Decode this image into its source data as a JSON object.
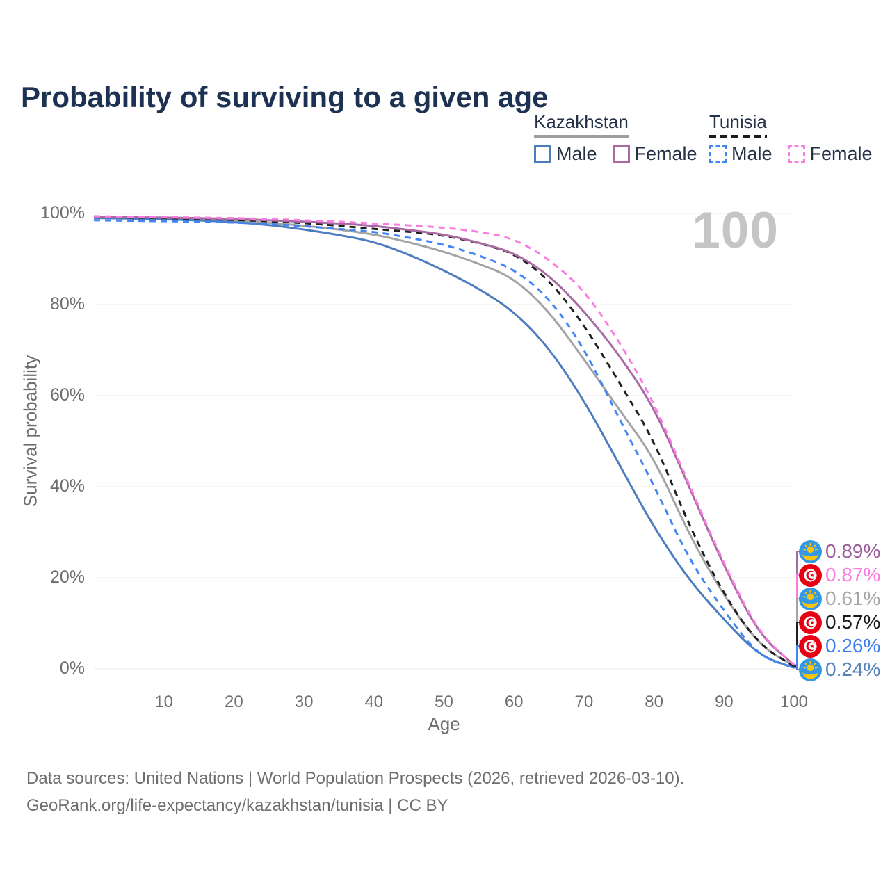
{
  "title": "Probability of surviving to a given age",
  "watermark": "100",
  "legend": {
    "groups": [
      {
        "country": "Kazakhstan",
        "line_style": "solid",
        "underline_color": "#9e9e9e",
        "items": [
          {
            "label": "Male",
            "color": "#4d7dbf"
          },
          {
            "label": "Female",
            "color": "#a96aa3"
          }
        ]
      },
      {
        "country": "Tunisia",
        "line_style": "dashed",
        "underline_color": "#1c1c1c",
        "items": [
          {
            "label": "Male",
            "color": "#4285f4"
          },
          {
            "label": "Female",
            "color": "#fb7ce1"
          }
        ]
      }
    ]
  },
  "chart_data": {
    "type": "line",
    "xlabel": "Age",
    "ylabel": "Survival probability",
    "xlim": [
      0,
      100
    ],
    "ylim": [
      0,
      100
    ],
    "grid": true,
    "legend_position": "top-right",
    "hover_age": 100,
    "x_ticks": [
      10,
      20,
      30,
      40,
      50,
      60,
      70,
      80,
      90,
      100
    ],
    "y_ticks": [
      {
        "value": 0,
        "label": "0%"
      },
      {
        "value": 20,
        "label": "20%"
      },
      {
        "value": 40,
        "label": "40%"
      },
      {
        "value": 60,
        "label": "60%"
      },
      {
        "value": 80,
        "label": "80%"
      },
      {
        "value": 100,
        "label": "100%"
      }
    ],
    "ages": [
      0,
      5,
      10,
      15,
      20,
      25,
      30,
      35,
      40,
      45,
      50,
      55,
      60,
      65,
      70,
      75,
      80,
      85,
      90,
      95,
      100
    ],
    "series": [
      {
        "name": "Kazakhstan",
        "country": "kz",
        "sex": "both",
        "color": "#a3a3a3",
        "dashed": false,
        "values": [
          99.1,
          99.0,
          98.9,
          98.7,
          98.4,
          98.0,
          97.3,
          96.5,
          95.4,
          93.7,
          91.6,
          89.0,
          85.8,
          78.5,
          68.0,
          57.0,
          46.4,
          29.5,
          16.0,
          5.2,
          0.61
        ],
        "end_label": "0.61%",
        "end_label_color": "#a6a6a6"
      },
      {
        "name": "Kazakhstan Male",
        "country": "kz",
        "sex": "male",
        "color": "#4d7dbf",
        "dashed": false,
        "values": [
          99.0,
          98.9,
          98.7,
          98.5,
          98.1,
          97.5,
          96.5,
          95.3,
          93.8,
          91.0,
          87.5,
          83.5,
          78.5,
          70.5,
          59.0,
          45.0,
          31.0,
          19.5,
          10.8,
          2.9,
          0.24
        ],
        "end_label": "0.24%",
        "end_label_color": "#5581bd"
      },
      {
        "name": "Tunisia Male",
        "country": "tn",
        "sex": "male",
        "color": "#4285f4",
        "dashed": true,
        "values": [
          98.5,
          98.4,
          98.3,
          98.2,
          98.0,
          97.7,
          97.2,
          96.6,
          96.0,
          94.7,
          93.2,
          90.8,
          87.8,
          81.5,
          70.5,
          55.0,
          40.3,
          24.0,
          12.7,
          2.7,
          0.26
        ],
        "end_label": "0.26%",
        "end_label_color": "#3d7df0"
      },
      {
        "name": "Tunisia",
        "country": "tn",
        "sex": "both",
        "color": "#1f1f1f",
        "dashed": true,
        "values": [
          99.2,
          99.1,
          99.0,
          98.8,
          98.6,
          98.3,
          97.9,
          97.3,
          96.6,
          96.0,
          95.2,
          93.5,
          91.3,
          85.5,
          75.6,
          63.0,
          50.2,
          31.5,
          16.2,
          5.3,
          0.57
        ],
        "end_label": "0.57%",
        "end_label_color": "#1a1a1a"
      },
      {
        "name": "Kazakhstan Female",
        "country": "kz",
        "sex": "female",
        "color": "#a96aa3",
        "dashed": false,
        "values": [
          99.3,
          99.2,
          99.1,
          99.0,
          98.8,
          98.5,
          98.2,
          97.8,
          97.3,
          96.4,
          95.4,
          93.6,
          91.4,
          86.5,
          78.6,
          69.0,
          57.5,
          40.0,
          22.5,
          7.5,
          0.89
        ],
        "end_label": "0.89%",
        "end_label_color": "#9c5a9a"
      },
      {
        "name": "Tunisia Female",
        "country": "tn",
        "sex": "female",
        "color": "#fb7ce1",
        "dashed": true,
        "values": [
          99.4,
          99.3,
          99.2,
          99.1,
          99.0,
          98.8,
          98.5,
          98.2,
          97.8,
          97.4,
          96.9,
          96.0,
          94.5,
          90.0,
          83.2,
          72.0,
          58.5,
          40.5,
          23.0,
          7.8,
          0.87
        ],
        "end_label": "0.87%",
        "end_label_color": "#fb7ce1"
      }
    ]
  },
  "footer": {
    "line1": "Data sources: United Nations | World Population Prospects (2026, retrieved 2026-03-10).",
    "line2": "GeoRank.org/life-expectancy/kazakhstan/tunisia | CC BY"
  }
}
